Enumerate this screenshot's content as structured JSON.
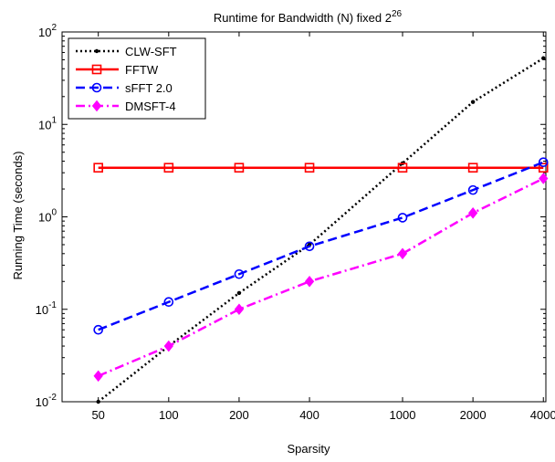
{
  "chart_data": {
    "type": "line",
    "title_main": "Runtime for Bandwidth (N) fixed 2",
    "title_sup": "26",
    "xlabel": "Sparsity",
    "ylabel": "Running Time (seconds)",
    "x_scale": "log",
    "y_scale": "log",
    "categories": [
      "50",
      "100",
      "200",
      "400",
      "1000",
      "2000",
      "4000"
    ],
    "x": [
      50,
      100,
      200,
      400,
      1000,
      2000,
      4000
    ],
    "y_ticks": [
      {
        "value": 0.01,
        "base": "10",
        "exp": "-2"
      },
      {
        "value": 0.1,
        "base": "10",
        "exp": "-1"
      },
      {
        "value": 1,
        "base": "10",
        "exp": "0"
      },
      {
        "value": 10,
        "base": "10",
        "exp": "1"
      },
      {
        "value": 100,
        "base": "10",
        "exp": "2"
      }
    ],
    "xlim": [
      35,
      4100
    ],
    "ylim": [
      0.01,
      100
    ],
    "grid": false,
    "legend_position": "top-left",
    "series": [
      {
        "name": "CLW-SFT",
        "color": "#000000",
        "dash": "dotted",
        "marker": "dot",
        "values": [
          0.01,
          0.04,
          0.15,
          0.5,
          3.8,
          17.5,
          52
        ]
      },
      {
        "name": "FFTW",
        "color": "#ff0000",
        "dash": "solid",
        "marker": "square",
        "values": [
          3.4,
          3.4,
          3.4,
          3.4,
          3.4,
          3.4,
          3.4
        ]
      },
      {
        "name": "sFFT 2.0",
        "color": "#0000ff",
        "dash": "dashed",
        "marker": "circle",
        "values": [
          0.06,
          0.12,
          0.24,
          0.48,
          0.98,
          1.95,
          3.9
        ]
      },
      {
        "name": "DMSFT-4",
        "color": "#ff00ff",
        "dash": "dashdot",
        "marker": "diamond",
        "values": [
          0.019,
          0.04,
          0.1,
          0.2,
          0.4,
          1.1,
          2.6
        ]
      }
    ]
  }
}
